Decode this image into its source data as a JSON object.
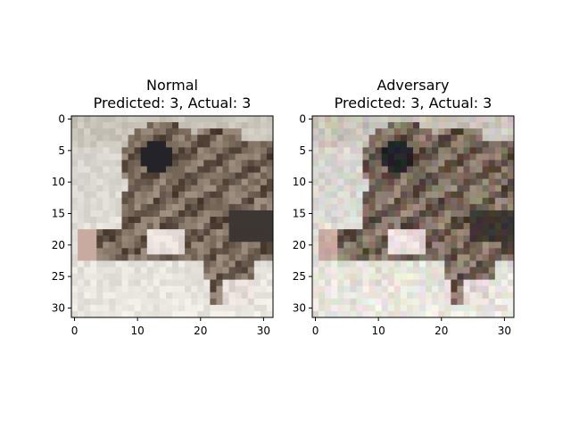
{
  "panels": [
    {
      "title_line1": "Normal",
      "title_line2": "Predicted: 3, Actual: 3",
      "x_ticks": [
        "0",
        "10",
        "20",
        "30"
      ],
      "y_ticks": [
        "0",
        "5",
        "10",
        "15",
        "20",
        "25",
        "30"
      ],
      "image_description": "32x32 pixelated photo of a tabby cat lying on a light surface"
    },
    {
      "title_line1": "Adversary",
      "title_line2": "Predicted: 3, Actual: 3",
      "x_ticks": [
        "0",
        "10",
        "20",
        "30"
      ],
      "y_ticks": [
        "0",
        "5",
        "10",
        "15",
        "20",
        "25",
        "30"
      ],
      "image_description": "32x32 adversarially perturbed version of the same cat image"
    }
  ],
  "colors": {
    "background": "#ffffff",
    "axis": "#000000"
  }
}
